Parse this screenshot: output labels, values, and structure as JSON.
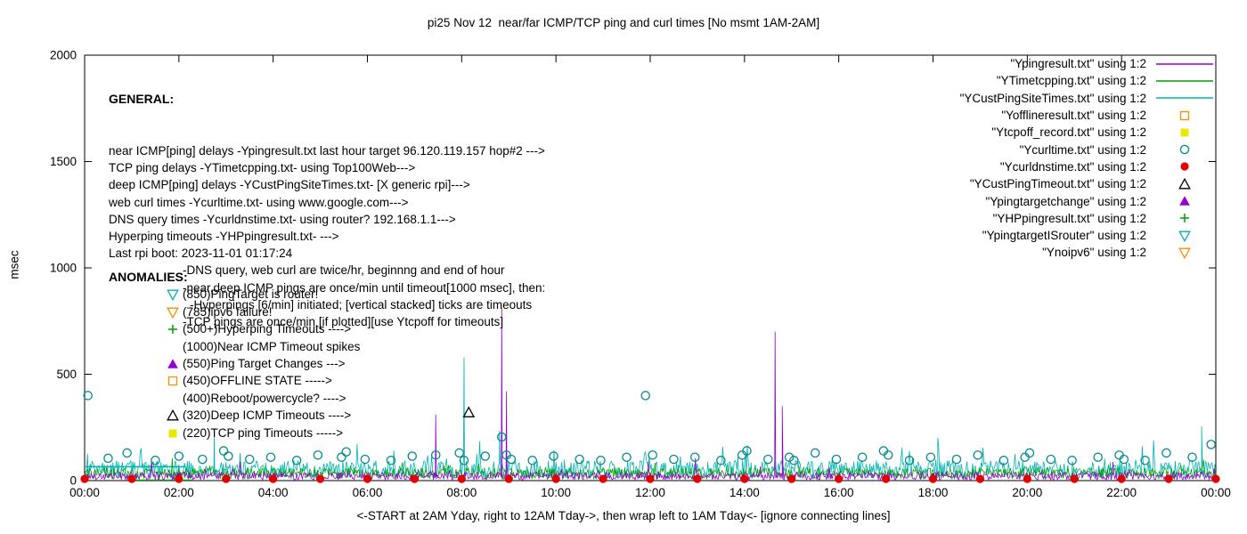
{
  "general": {
    "heading": "GENERAL:",
    "lines": [
      {
        "indent": 0,
        "text": "near ICMP[ping] delays -Ypingresult.txt last hour target 96.120.119.157 hop#2 --->"
      },
      {
        "indent": 0,
        "text": "TCP ping delays -YTimetcpping.txt- using Top100Web--->"
      },
      {
        "indent": 0,
        "text": "deep ICMP[ping] delays -YCustPingSiteTimes.txt- [X generic rpi]--->"
      },
      {
        "indent": 0,
        "text": "web curl times -Ycurltime.txt- using www.google.com--->"
      },
      {
        "indent": 0,
        "text": "DNS query times -Ycurldnstime.txt- using router? 192.168.1.1--->"
      },
      {
        "indent": 0,
        "text": "Hyperping timeouts -YHPpingresult.txt- --->"
      },
      {
        "indent": 0,
        "text": "Last rpi boot: 2023-11-01 01:17:24"
      },
      {
        "indent": 83,
        "text": "-DNS query, web curl are twice/hr, beginnng and end of hour"
      },
      {
        "indent": 83,
        "text": "-near,deep ICMP pings are once/min until timeout[1000 msec], then:"
      },
      {
        "indent": 91,
        "text": "-Hyperpings [6/min] initiated; [vertical stacked] ticks are timeouts"
      },
      {
        "indent": 83,
        "text": "-TCP pings are once/min [if plotted][use Ytcpoff for timeouts]"
      }
    ]
  },
  "anomalies": {
    "heading": "ANOMALIES:",
    "items": [
      {
        "marker": "tri-down-open",
        "color": "#00b2b2",
        "text": "(850)PingTarget is router!"
      },
      {
        "marker": "tri-down-open",
        "color": "#ff8c00",
        "text": "(785)ipv6 failure!"
      },
      {
        "marker": "plus",
        "color": "#00a000",
        "text": "(500+)Hyperping Timeouts ---->"
      },
      {
        "marker": "none",
        "color": "",
        "text": "(1000)Near ICMP Timeout spikes"
      },
      {
        "marker": "triangle-filled",
        "color": "#9400d3",
        "text": "(550)Ping Target Changes --->"
      },
      {
        "marker": "square-open",
        "color": "#ff8c00",
        "text": "(450)OFFLINE STATE ----->"
      },
      {
        "marker": "none",
        "color": "",
        "text": "(400)Reboot/powercycle? ---->"
      },
      {
        "marker": "triangle-open",
        "color": "#000000",
        "text": "(320)Deep ICMP Timeouts ---->"
      },
      {
        "marker": "square-filled",
        "color": "#e8e800",
        "text": "(220)TCP ping Timeouts ----->"
      }
    ]
  },
  "legend": [
    {
      "label": "\"Ypingresult.txt\" using 1:2",
      "style": "line",
      "color": "#9400d3"
    },
    {
      "label": "\"YTimetcpping.txt\" using 1:2",
      "style": "line",
      "color": "#00a000"
    },
    {
      "label": "\"YCustPingSiteTimes.txt\" using 1:2",
      "style": "line",
      "color": "#00b2b2"
    },
    {
      "label": "\"Yofflineresult.txt\" using 1:2",
      "style": "square-open",
      "color": "#ff8c00"
    },
    {
      "label": "\"Ytcpoff_record.txt\" using 1:2",
      "style": "square-filled",
      "color": "#e8e800"
    },
    {
      "label": "\"Ycurltime.txt\" using 1:2",
      "style": "circle-open",
      "color": "#008b8b"
    },
    {
      "label": "\"Ycurldnstime.txt\" using 1:2",
      "style": "circle-filled",
      "color": "#e00000"
    },
    {
      "label": "\"YCustPingTimeout.txt\" using 1:2",
      "style": "triangle-open",
      "color": "#000000"
    },
    {
      "label": "\"Ypingtargetchange\" using 1:2",
      "style": "triangle-filled",
      "color": "#9400d3"
    },
    {
      "label": "\"YHPpingresult.txt\" using 1:2",
      "style": "plus",
      "color": "#00a000"
    },
    {
      "label": "\"YpingtargetISrouter\" using 1:2",
      "style": "tri-down-open",
      "color": "#00b2b2"
    },
    {
      "label": "\"Ynoipv6\" using 1:2",
      "style": "tri-down-open",
      "color": "#ff8c00"
    }
  ],
  "chart_data": {
    "type": "line",
    "title": "pi25 Nov 12  near/far ICMP/TCP ping and curl times [No msmt 1AM-2AM]",
    "xlabel": "<-START at 2AM Yday, right to 12AM Tday->, then wrap left to 1AM Tday<- [ignore connecting lines]",
    "ylabel": "msec",
    "ylim": [
      0,
      2000
    ],
    "xlim": [
      0,
      24
    ],
    "grid": false,
    "legend_position": "top-right",
    "yticks": [
      {
        "v": 0,
        "label": "0"
      },
      {
        "v": 500,
        "label": "500"
      },
      {
        "v": 1000,
        "label": "1000"
      },
      {
        "v": 1500,
        "label": "1500"
      },
      {
        "v": 2000,
        "label": "2000"
      }
    ],
    "xticks": [
      {
        "v": 0,
        "label": "00:00"
      },
      {
        "v": 2,
        "label": "02:00"
      },
      {
        "v": 4,
        "label": "04:00"
      },
      {
        "v": 6,
        "label": "06:00"
      },
      {
        "v": 8,
        "label": "08:00"
      },
      {
        "v": 10,
        "label": "10:00"
      },
      {
        "v": 12,
        "label": "12:00"
      },
      {
        "v": 14,
        "label": "14:00"
      },
      {
        "v": 16,
        "label": "16:00"
      },
      {
        "v": 18,
        "label": "18:00"
      },
      {
        "v": 20,
        "label": "20:00"
      },
      {
        "v": 22,
        "label": "22:00"
      },
      {
        "v": 24,
        "label": "00:00"
      }
    ],
    "series": [
      {
        "name": "YCustPingSiteTimes.txt",
        "style": "line",
        "color": "#00b2b2",
        "baseline": {
          "min": 12,
          "max": 95,
          "spike_prob": 0.05,
          "spike_max": 110,
          "seed": 43
        },
        "spikes": [
          [
            2.75,
            205
          ],
          [
            8.05,
            580
          ],
          [
            8.8,
            235
          ],
          [
            18.1,
            200
          ],
          [
            23.7,
            255
          ]
        ],
        "flat_segments": [
          [
            0.0,
            2.15,
            65
          ]
        ]
      },
      {
        "name": "YTimetcpping.txt",
        "style": "line",
        "color": "#00a000",
        "baseline": {
          "min": 8,
          "max": 60,
          "spike_prob": 0.02,
          "spike_max": 70,
          "seed": 29
        },
        "spikes": [],
        "flat_segments": [
          [
            0.95,
            2.3,
            2
          ]
        ]
      },
      {
        "name": "Ypingresult.txt",
        "style": "line",
        "color": "#9400d3",
        "baseline": {
          "min": 3,
          "max": 40,
          "spike_prob": 0.015,
          "spike_max": 90,
          "seed": 17
        },
        "spikes": [
          [
            7.45,
            310
          ],
          [
            8.85,
            810
          ],
          [
            8.95,
            420
          ],
          [
            14.65,
            700
          ],
          [
            14.8,
            350
          ]
        ],
        "flat_segments": []
      },
      {
        "name": "Yofflineresult.txt",
        "style": "square-open",
        "color": "#ff8c00",
        "points": []
      },
      {
        "name": "Ytcpoff_record.txt",
        "style": "square-filled",
        "color": "#e8e800",
        "points": []
      },
      {
        "name": "Ycurltime.txt",
        "style": "circle-open",
        "color": "#008b8b",
        "points": [
          [
            0.07,
            400
          ],
          [
            0.5,
            105
          ],
          [
            0.9,
            130
          ],
          [
            1.5,
            95
          ],
          [
            2.0,
            115
          ],
          [
            2.5,
            100
          ],
          [
            2.95,
            140
          ],
          [
            3.05,
            115
          ],
          [
            3.5,
            100
          ],
          [
            3.95,
            110
          ],
          [
            4.5,
            95
          ],
          [
            4.95,
            120
          ],
          [
            5.45,
            110
          ],
          [
            5.55,
            135
          ],
          [
            5.95,
            100
          ],
          [
            6.5,
            95
          ],
          [
            6.95,
            115
          ],
          [
            7.45,
            120
          ],
          [
            7.95,
            130
          ],
          [
            8.05,
            95
          ],
          [
            8.5,
            115
          ],
          [
            8.85,
            205
          ],
          [
            8.95,
            120
          ],
          [
            9.05,
            100
          ],
          [
            9.5,
            95
          ],
          [
            9.95,
            115
          ],
          [
            10.5,
            100
          ],
          [
            10.95,
            95
          ],
          [
            11.5,
            110
          ],
          [
            11.9,
            400
          ],
          [
            12.05,
            120
          ],
          [
            12.5,
            100
          ],
          [
            12.95,
            110
          ],
          [
            13.5,
            95
          ],
          [
            13.95,
            120
          ],
          [
            14.05,
            140
          ],
          [
            14.5,
            100
          ],
          [
            14.95,
            110
          ],
          [
            15.05,
            95
          ],
          [
            15.5,
            130
          ],
          [
            15.95,
            100
          ],
          [
            16.5,
            110
          ],
          [
            16.95,
            140
          ],
          [
            17.05,
            120
          ],
          [
            17.5,
            95
          ],
          [
            17.95,
            110
          ],
          [
            18.5,
            100
          ],
          [
            18.95,
            120
          ],
          [
            19.5,
            95
          ],
          [
            19.95,
            110
          ],
          [
            20.05,
            130
          ],
          [
            20.5,
            100
          ],
          [
            20.95,
            95
          ],
          [
            21.5,
            110
          ],
          [
            21.95,
            120
          ],
          [
            22.05,
            100
          ],
          [
            22.5,
            95
          ],
          [
            22.95,
            130
          ],
          [
            23.5,
            110
          ],
          [
            23.9,
            170
          ]
        ]
      },
      {
        "name": "Ycurldnstime.txt",
        "style": "circle-filled",
        "color": "#e00000",
        "points": [
          [
            0,
            8
          ],
          [
            1,
            8
          ],
          [
            2,
            8
          ],
          [
            3,
            8
          ],
          [
            4,
            8
          ],
          [
            5,
            8
          ],
          [
            6,
            8
          ],
          [
            7,
            8
          ],
          [
            8,
            8
          ],
          [
            9,
            8
          ],
          [
            10,
            8
          ],
          [
            11,
            8
          ],
          [
            12,
            8
          ],
          [
            13,
            8
          ],
          [
            14,
            8
          ],
          [
            15,
            8
          ],
          [
            16,
            8
          ],
          [
            17,
            8
          ],
          [
            18,
            8
          ],
          [
            19,
            8
          ],
          [
            20,
            8
          ],
          [
            21,
            8
          ],
          [
            22,
            8
          ],
          [
            23,
            8
          ],
          [
            24,
            8
          ]
        ]
      },
      {
        "name": "YCustPingTimeout.txt",
        "style": "triangle-open",
        "color": "#000000",
        "points": [
          [
            8.15,
            320
          ]
        ]
      },
      {
        "name": "Ypingtargetchange",
        "style": "triangle-filled",
        "color": "#9400d3",
        "points": []
      },
      {
        "name": "YHPpingresult.txt",
        "style": "plus",
        "color": "#00a000",
        "points": []
      },
      {
        "name": "YpingtargetISrouter",
        "style": "tri-down-open",
        "color": "#00b2b2",
        "points": []
      },
      {
        "name": "Ynoipv6",
        "style": "tri-down-open",
        "color": "#ff8c00",
        "points": []
      }
    ]
  }
}
